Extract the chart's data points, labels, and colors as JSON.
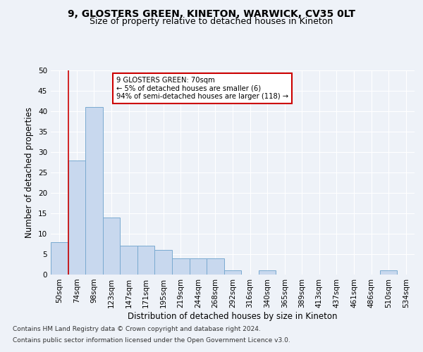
{
  "title": "9, GLOSTERS GREEN, KINETON, WARWICK, CV35 0LT",
  "subtitle": "Size of property relative to detached houses in Kineton",
  "xlabel": "Distribution of detached houses by size in Kineton",
  "ylabel": "Number of detached properties",
  "footnote1": "Contains HM Land Registry data © Crown copyright and database right 2024.",
  "footnote2": "Contains public sector information licensed under the Open Government Licence v3.0.",
  "bar_labels": [
    "50sqm",
    "74sqm",
    "98sqm",
    "123sqm",
    "147sqm",
    "171sqm",
    "195sqm",
    "219sqm",
    "244sqm",
    "268sqm",
    "292sqm",
    "316sqm",
    "340sqm",
    "365sqm",
    "389sqm",
    "413sqm",
    "437sqm",
    "461sqm",
    "486sqm",
    "510sqm",
    "534sqm"
  ],
  "bar_values": [
    8,
    28,
    41,
    14,
    7,
    7,
    6,
    4,
    4,
    4,
    1,
    0,
    1,
    0,
    0,
    0,
    0,
    0,
    0,
    1,
    0
  ],
  "bar_color": "#c8d8ee",
  "bar_edge_color": "#7aaad0",
  "annotation_box_text": "9 GLOSTERS GREEN: 70sqm\n← 5% of detached houses are smaller (6)\n94% of semi-detached houses are larger (118) →",
  "annotation_box_color": "#ffffff",
  "annotation_box_edge_color": "#cc0000",
  "vline_x": 0.5,
  "ylim": [
    0,
    50
  ],
  "yticks": [
    0,
    5,
    10,
    15,
    20,
    25,
    30,
    35,
    40,
    45,
    50
  ],
  "background_color": "#eef2f8",
  "grid_color": "#ffffff",
  "title_fontsize": 10,
  "subtitle_fontsize": 9,
  "axis_label_fontsize": 8.5,
  "tick_fontsize": 7.5,
  "footnote_fontsize": 6.5
}
